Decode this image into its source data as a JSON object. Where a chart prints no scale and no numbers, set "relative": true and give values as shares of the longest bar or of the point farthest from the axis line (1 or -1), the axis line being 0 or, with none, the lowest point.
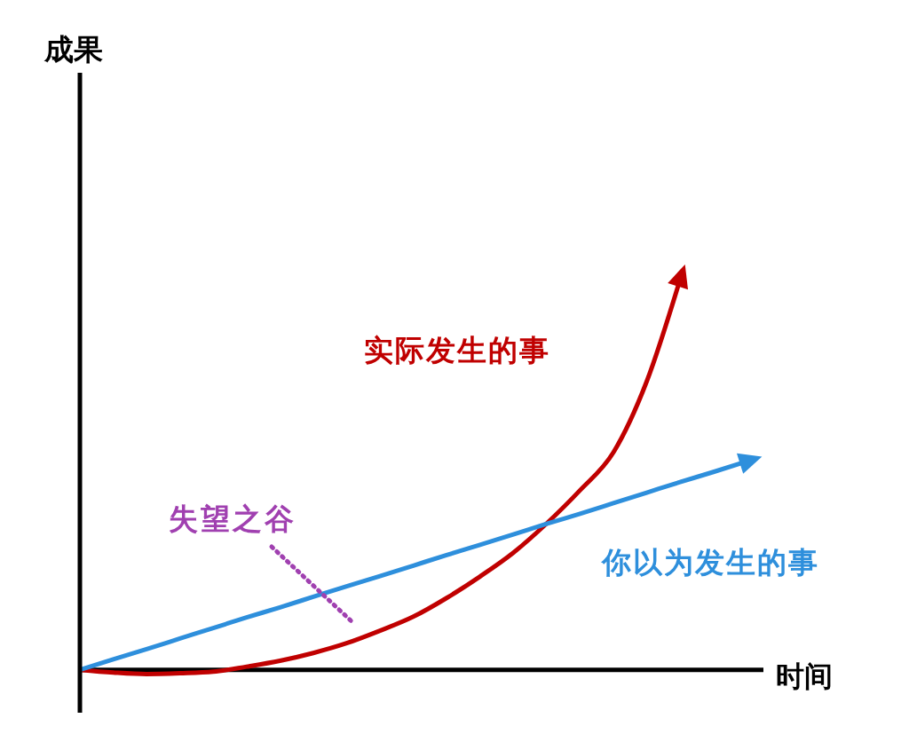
{
  "chart_data": {
    "type": "line",
    "relative": true,
    "xlabel": "时间",
    "categories": [
      null,
      null,
      null,
      null,
      null,
      null,
      null,
      null,
      null,
      null,
      null,
      null,
      null,
      null,
      null,
      null,
      null,
      null,
      null,
      null,
      null
    ],
    "series": [
      {
        "name": "实际发生的事",
        "color": "#c00000",
        "values": [
          0,
          -0.007,
          -0.011,
          -0.009,
          -0.005,
          0.008,
          0.023,
          0.043,
          0.068,
          0.1,
          0.136,
          0.184,
          0.239,
          0.3,
          0.375,
          0.46,
          0.557,
          0.739,
          1.0,
          null,
          null
        ]
      },
      {
        "name": "你以为发生的事",
        "color": "#2e8fdc",
        "values": [
          0,
          0.027,
          0.053,
          0.08,
          0.107,
          0.134,
          0.16,
          0.187,
          0.214,
          0.24,
          0.267,
          0.294,
          0.32,
          0.347,
          0.374,
          0.4,
          0.427,
          0.454,
          0.481,
          0.507,
          0.534
        ]
      }
    ],
    "annotations": [
      "失望之谷",
      "成果"
    ],
    "marker": "none",
    "legend": false,
    "grid": false
  }
}
